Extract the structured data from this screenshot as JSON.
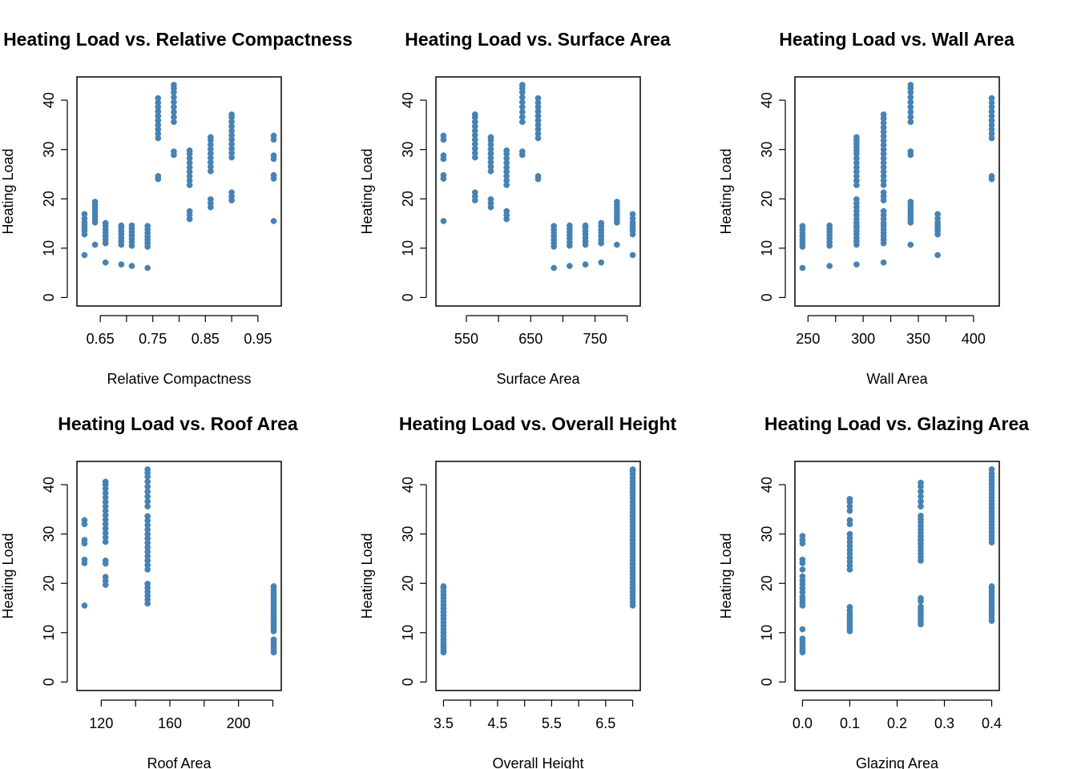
{
  "chart_data": [
    {
      "type": "scatter",
      "title": "Heating Load vs. Relative Compactness",
      "xlabel": "Relative Compactness",
      "ylabel": "Heating Load",
      "xlim": [
        0.62,
        0.98
      ],
      "ylim": [
        0,
        43
      ],
      "xticks": [
        "0.65",
        "0.75",
        "0.85",
        "0.95"
      ],
      "xtick_values": [
        0.65,
        0.75,
        0.85,
        0.95
      ],
      "xticks_minor": [
        0.7,
        0.8,
        0.9
      ],
      "yticks": [
        "0",
        "10",
        "20",
        "30",
        "40"
      ],
      "color": "#4682B4",
      "points": [
        {
          "x": 0.62,
          "y": [
            8.6,
            12.8,
            13.5,
            14.0,
            14.6,
            15.2,
            16.0,
            16.9
          ]
        },
        {
          "x": 0.64,
          "y": [
            10.7,
            15.2,
            15.8,
            16.4,
            17.0,
            17.6,
            18.2,
            18.8,
            19.4
          ]
        },
        {
          "x": 0.66,
          "y": [
            7.1,
            11.0,
            11.7,
            12.4,
            13.1,
            13.8,
            14.5,
            15.1
          ]
        },
        {
          "x": 0.69,
          "y": [
            6.7,
            10.7,
            11.4,
            12.1,
            12.8,
            13.5,
            14.2,
            14.6
          ]
        },
        {
          "x": 0.71,
          "y": [
            6.4,
            10.5,
            11.2,
            11.9,
            12.6,
            13.3,
            14.0,
            14.6
          ]
        },
        {
          "x": 0.74,
          "y": [
            6.0,
            10.3,
            11.0,
            11.7,
            12.4,
            13.1,
            13.8,
            14.5
          ]
        },
        {
          "x": 0.76,
          "y": [
            24.0,
            24.6,
            32.3,
            33.2,
            34.1,
            35.0,
            35.9,
            36.8,
            37.7,
            38.6,
            39.5,
            40.4
          ]
        },
        {
          "x": 0.79,
          "y": [
            28.9,
            29.6,
            35.6,
            36.6,
            37.6,
            38.6,
            39.6,
            40.6,
            41.6,
            42.4,
            43.1
          ]
        },
        {
          "x": 0.82,
          "y": [
            15.9,
            16.7,
            17.5,
            22.8,
            23.7,
            24.6,
            25.5,
            26.4,
            27.3,
            28.2,
            29.1,
            29.8
          ]
        },
        {
          "x": 0.86,
          "y": [
            18.3,
            19.1,
            19.9,
            25.6,
            26.5,
            27.4,
            28.3,
            29.2,
            30.1,
            31.0,
            31.9,
            32.5
          ]
        },
        {
          "x": 0.9,
          "y": [
            19.7,
            20.5,
            21.3,
            28.4,
            29.3,
            30.2,
            31.1,
            32.0,
            32.9,
            33.8,
            34.7,
            35.6,
            36.5,
            37.1
          ]
        },
        {
          "x": 0.98,
          "y": [
            15.5,
            24.1,
            24.8,
            28.1,
            28.8,
            32.0,
            32.8
          ]
        }
      ]
    },
    {
      "type": "scatter",
      "title": "Heating Load vs. Surface Area",
      "xlabel": "Surface Area",
      "ylabel": "Heating Load",
      "xlim": [
        514.5,
        808.5
      ],
      "ylim": [
        0,
        43
      ],
      "xticks": [
        "550",
        "650",
        "750"
      ],
      "xtick_values": [
        550,
        650,
        750
      ],
      "xticks_minor": [
        600,
        700,
        800
      ],
      "yticks": [
        "0",
        "10",
        "20",
        "30",
        "40"
      ],
      "color": "#4682B4",
      "points": [
        {
          "x": 514.5,
          "y": [
            15.5,
            24.1,
            24.8,
            28.1,
            28.8,
            32.0,
            32.8
          ]
        },
        {
          "x": 563.5,
          "y": [
            19.7,
            20.5,
            21.3,
            28.4,
            29.3,
            30.2,
            31.1,
            32.0,
            32.9,
            33.8,
            34.7,
            35.6,
            36.5,
            37.1
          ]
        },
        {
          "x": 588.0,
          "y": [
            18.3,
            19.1,
            19.9,
            25.6,
            26.5,
            27.4,
            28.3,
            29.2,
            30.1,
            31.0,
            31.9,
            32.5
          ]
        },
        {
          "x": 612.5,
          "y": [
            15.9,
            16.7,
            17.5,
            22.8,
            23.7,
            24.6,
            25.5,
            26.4,
            27.3,
            28.2,
            29.1,
            29.8
          ]
        },
        {
          "x": 637.0,
          "y": [
            28.9,
            29.6,
            35.6,
            36.6,
            37.6,
            38.6,
            39.6,
            40.6,
            41.6,
            42.4,
            43.1
          ]
        },
        {
          "x": 661.5,
          "y": [
            24.0,
            24.6,
            32.3,
            33.2,
            34.1,
            35.0,
            35.9,
            36.8,
            37.7,
            38.6,
            39.5,
            40.4
          ]
        },
        {
          "x": 686.0,
          "y": [
            6.0,
            10.3,
            11.0,
            11.7,
            12.4,
            13.1,
            13.8,
            14.5
          ]
        },
        {
          "x": 710.5,
          "y": [
            6.4,
            10.5,
            11.2,
            11.9,
            12.6,
            13.3,
            14.0,
            14.6
          ]
        },
        {
          "x": 735.0,
          "y": [
            6.7,
            10.7,
            11.4,
            12.1,
            12.8,
            13.5,
            14.2,
            14.6
          ]
        },
        {
          "x": 759.5,
          "y": [
            7.1,
            11.0,
            11.7,
            12.4,
            13.1,
            13.8,
            14.5,
            15.1
          ]
        },
        {
          "x": 784.0,
          "y": [
            10.7,
            15.2,
            15.8,
            16.4,
            17.0,
            17.6,
            18.2,
            18.8,
            19.4
          ]
        },
        {
          "x": 808.5,
          "y": [
            8.6,
            12.8,
            13.5,
            14.0,
            14.6,
            15.2,
            16.0,
            16.9
          ]
        }
      ]
    },
    {
      "type": "scatter",
      "title": "Heating Load vs. Wall Area",
      "xlabel": "Wall Area",
      "ylabel": "Heating Load",
      "xlim": [
        245,
        416.5
      ],
      "ylim": [
        0,
        43
      ],
      "xticks": [
        "250",
        "300",
        "350",
        "400"
      ],
      "xtick_values": [
        250,
        300,
        350,
        400
      ],
      "xticks_minor": [
        275,
        325,
        375
      ],
      "yticks": [
        "0",
        "10",
        "20",
        "30",
        "40"
      ],
      "color": "#4682B4",
      "points": [
        {
          "x": 245.0,
          "y": [
            6.0,
            10.3,
            11.0,
            11.7,
            12.4,
            13.1,
            13.8,
            14.5
          ]
        },
        {
          "x": 269.5,
          "y": [
            6.4,
            10.5,
            11.2,
            11.9,
            12.6,
            13.3,
            14.0,
            14.6
          ]
        },
        {
          "x": 294.0,
          "y": [
            6.7,
            10.7,
            11.4,
            12.1,
            12.8,
            13.5,
            14.2,
            14.6,
            15.2,
            15.9,
            16.7,
            17.5,
            18.3,
            19.1,
            19.9,
            22.8,
            23.7,
            24.6,
            25.5,
            26.4,
            27.3,
            28.2,
            29.1,
            29.8,
            30.5,
            31.2,
            31.9,
            32.5
          ]
        },
        {
          "x": 318.5,
          "y": [
            7.1,
            11.0,
            11.7,
            12.4,
            13.1,
            13.8,
            14.5,
            15.1,
            15.9,
            16.7,
            17.5,
            19.7,
            20.5,
            21.3,
            22.8,
            23.7,
            24.6,
            25.5,
            26.4,
            27.3,
            28.2,
            29.1,
            30.0,
            30.9,
            31.8,
            32.7,
            33.6,
            34.5,
            35.4,
            36.3,
            37.1
          ]
        },
        {
          "x": 343.0,
          "y": [
            10.7,
            15.2,
            15.8,
            16.4,
            17.0,
            17.6,
            18.2,
            18.8,
            19.4,
            28.9,
            29.6,
            35.6,
            36.6,
            37.6,
            38.6,
            39.6,
            40.6,
            41.6,
            42.4,
            43.1
          ]
        },
        {
          "x": 367.5,
          "y": [
            8.6,
            12.8,
            13.5,
            14.0,
            14.6,
            15.2,
            16.0,
            16.9
          ]
        },
        {
          "x": 416.5,
          "y": [
            24.0,
            24.6,
            32.3,
            33.2,
            34.1,
            35.0,
            35.9,
            36.8,
            37.7,
            38.6,
            39.5,
            40.4
          ]
        }
      ]
    },
    {
      "type": "scatter",
      "title": "Heating Load vs. Roof Area",
      "xlabel": "Roof Area",
      "ylabel": "Heating Load",
      "xlim": [
        110.25,
        220.5
      ],
      "ylim": [
        0,
        43
      ],
      "xticks": [
        "120",
        "160",
        "200"
      ],
      "xtick_values": [
        120,
        160,
        200
      ],
      "xticks_minor": [
        140,
        180,
        220
      ],
      "yticks": [
        "0",
        "10",
        "20",
        "30",
        "40"
      ],
      "color": "#4682B4",
      "points": [
        {
          "x": 110.25,
          "y": [
            15.5,
            24.1,
            24.8,
            28.1,
            28.8,
            32.0,
            32.8
          ]
        },
        {
          "x": 122.5,
          "y": [
            19.7,
            20.5,
            21.3,
            24.0,
            24.6,
            28.4,
            29.3,
            30.2,
            31.1,
            32.0,
            32.9,
            33.8,
            34.7,
            35.6,
            36.5,
            37.4,
            38.3,
            39.2,
            40.0,
            40.6
          ]
        },
        {
          "x": 147.0,
          "y": [
            15.9,
            16.7,
            17.5,
            18.3,
            19.1,
            19.9,
            22.8,
            23.7,
            24.6,
            25.5,
            26.4,
            27.3,
            28.2,
            29.1,
            30.0,
            30.9,
            31.8,
            32.7,
            33.6,
            35.6,
            36.6,
            37.6,
            38.6,
            39.6,
            40.6,
            41.6,
            42.4,
            43.1
          ]
        },
        {
          "x": 220.5,
          "y": [
            6.0,
            6.5,
            7.0,
            7.5,
            8.0,
            8.6,
            10.3,
            10.8,
            11.3,
            11.8,
            12.3,
            12.8,
            13.3,
            13.8,
            14.3,
            14.8,
            15.3,
            15.8,
            16.3,
            16.8,
            17.3,
            17.8,
            18.3,
            18.8,
            19.4
          ]
        }
      ]
    },
    {
      "type": "scatter",
      "title": "Heating Load vs. Overall Height",
      "xlabel": "Overall Height",
      "ylabel": "Heating Load",
      "xlim": [
        3.5,
        7.0
      ],
      "ylim": [
        0,
        43
      ],
      "xticks": [
        "3.5",
        "4.5",
        "5.5",
        "6.5"
      ],
      "xtick_values": [
        3.5,
        4.5,
        5.5,
        6.5
      ],
      "xticks_minor": [
        4.0,
        5.0,
        6.0,
        7.0
      ],
      "yticks": [
        "0",
        "10",
        "20",
        "30",
        "40"
      ],
      "color": "#4682B4",
      "points": [
        {
          "x": 3.5,
          "y": [
            6.0,
            6.5,
            7.0,
            7.5,
            8.0,
            8.6,
            9.3,
            10.0,
            10.7,
            11.4,
            12.1,
            12.8,
            13.5,
            14.2,
            14.9,
            15.6,
            16.3,
            17.0,
            17.7,
            18.4,
            19.1,
            19.4
          ]
        },
        {
          "x": 7.0,
          "y": [
            15.5,
            16.2,
            16.9,
            17.6,
            18.3,
            19.0,
            19.7,
            20.4,
            21.1,
            21.8,
            22.5,
            23.2,
            23.9,
            24.6,
            25.3,
            26.0,
            26.7,
            27.4,
            28.1,
            28.8,
            29.5,
            30.2,
            30.9,
            31.6,
            32.3,
            33.0,
            33.7,
            34.4,
            35.1,
            35.8,
            36.5,
            37.2,
            37.9,
            38.6,
            39.3,
            40.0,
            40.7,
            41.4,
            42.1,
            42.8,
            43.1
          ]
        }
      ]
    },
    {
      "type": "scatter",
      "title": "Heating Load vs. Glazing Area",
      "xlabel": "Glazing Area",
      "ylabel": "Heating Load",
      "xlim": [
        0.0,
        0.4
      ],
      "ylim": [
        0,
        43
      ],
      "xticks": [
        "0.0",
        "0.1",
        "0.2",
        "0.3",
        "0.4"
      ],
      "xtick_values": [
        0.0,
        0.1,
        0.2,
        0.3,
        0.4
      ],
      "xticks_minor": [],
      "yticks": [
        "0",
        "10",
        "20",
        "30",
        "40"
      ],
      "color": "#4682B4",
      "points": [
        {
          "x": 0.0,
          "y": [
            6.0,
            6.5,
            7.0,
            7.6,
            8.2,
            8.8,
            10.7,
            15.5,
            16.1,
            16.7,
            17.3,
            18.2,
            19.0,
            19.8,
            20.6,
            21.4,
            22.8,
            24.1,
            24.8,
            28.1,
            28.8,
            29.6
          ]
        },
        {
          "x": 0.1,
          "y": [
            10.3,
            10.8,
            11.3,
            11.8,
            12.3,
            12.8,
            13.3,
            13.8,
            14.5,
            15.2,
            22.8,
            23.6,
            24.4,
            25.2,
            26.0,
            26.8,
            27.6,
            28.4,
            29.2,
            30.0,
            32.0,
            32.8,
            34.7,
            35.6,
            36.5,
            37.1
          ]
        },
        {
          "x": 0.25,
          "y": [
            11.7,
            12.3,
            12.9,
            13.5,
            14.1,
            14.7,
            15.3,
            16.4,
            17.0,
            24.6,
            25.3,
            26.0,
            26.7,
            27.4,
            28.1,
            28.8,
            29.5,
            30.2,
            30.9,
            31.6,
            32.3,
            33.0,
            33.7,
            35.6,
            36.6,
            37.6,
            38.6,
            39.6,
            40.4
          ]
        },
        {
          "x": 0.4,
          "y": [
            12.4,
            13.0,
            13.6,
            14.2,
            14.8,
            15.4,
            16.0,
            16.6,
            17.2,
            17.8,
            18.4,
            19.0,
            19.4,
            28.3,
            29.0,
            29.7,
            30.4,
            31.1,
            31.8,
            32.5,
            33.2,
            33.9,
            34.6,
            35.3,
            36.0,
            36.7,
            37.4,
            38.1,
            38.8,
            39.5,
            40.2,
            40.9,
            41.6,
            42.3,
            43.1
          ]
        }
      ]
    }
  ]
}
